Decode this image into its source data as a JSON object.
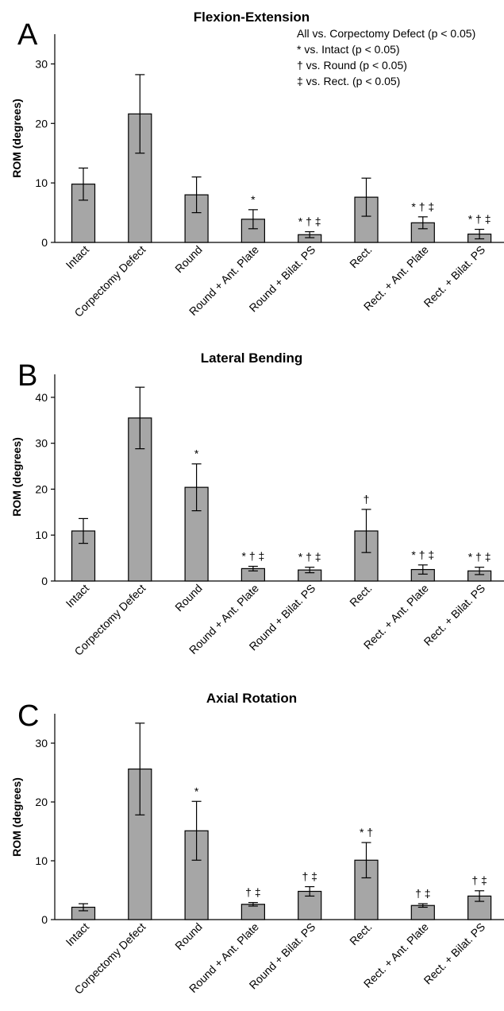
{
  "colors": {
    "bar_fill": "#a6a6a6",
    "stroke": "#000000"
  },
  "legend": [
    "All vs. Corpectomy Defect (p < 0.05)",
    "* vs. Intact (p < 0.05)",
    "† vs. Round (p < 0.05)",
    "‡ vs. Rect. (p < 0.05)"
  ],
  "chart_data": [
    {
      "type": "bar",
      "panel": "A",
      "title": "Flexion-Extension",
      "ylabel": "ROM (degrees)",
      "ylim": [
        0,
        35
      ],
      "yticks": [
        0,
        10,
        20,
        30
      ],
      "categories": [
        "Intact",
        "Corpectomy Defect",
        "Round",
        "Round + Ant. Plate",
        "Round + Bilat. PS",
        "Rect.",
        "Rect. + Ant. Plate",
        "Rect. + Bilat. PS"
      ],
      "values": [
        9.8,
        21.6,
        8.0,
        3.9,
        1.3,
        7.6,
        3.3,
        1.4
      ],
      "errors": [
        2.7,
        6.6,
        3.0,
        1.6,
        0.5,
        3.2,
        1.0,
        0.8
      ],
      "significance": [
        "",
        "",
        "",
        "*",
        "* † ‡",
        "",
        "* † ‡",
        "* † ‡"
      ]
    },
    {
      "type": "bar",
      "panel": "B",
      "title": "Lateral Bending",
      "ylabel": "ROM (degrees)",
      "ylim": [
        0,
        45
      ],
      "yticks": [
        0,
        10,
        20,
        30,
        40
      ],
      "categories": [
        "Intact",
        "Corpectomy Defect",
        "Round",
        "Round + Ant. Plate",
        "Round + Bilat. PS",
        "Rect.",
        "Rect. + Ant. Plate",
        "Rect. + Bilat. PS"
      ],
      "values": [
        10.9,
        35.5,
        20.4,
        2.7,
        2.4,
        10.9,
        2.5,
        2.2
      ],
      "errors": [
        2.7,
        6.7,
        5.1,
        0.5,
        0.6,
        4.7,
        1.0,
        0.8
      ],
      "significance": [
        "",
        "",
        "*",
        "* † ‡",
        "* † ‡",
        "†",
        "* † ‡",
        "* † ‡"
      ]
    },
    {
      "type": "bar",
      "panel": "C",
      "title": "Axial Rotation",
      "ylabel": "ROM (degrees)",
      "ylim": [
        0,
        35
      ],
      "yticks": [
        0,
        10,
        20,
        30
      ],
      "categories": [
        "Intact",
        "Corpectomy Defect",
        "Round",
        "Round + Ant. Plate",
        "Round + Bilat. PS",
        "Rect.",
        "Rect. + Ant. Plate",
        "Rect. + Bilat. PS"
      ],
      "values": [
        2.1,
        25.6,
        15.1,
        2.6,
        4.8,
        10.1,
        2.4,
        4.0
      ],
      "errors": [
        0.6,
        7.8,
        5.0,
        0.3,
        0.8,
        3.0,
        0.3,
        0.9
      ],
      "significance": [
        "",
        "",
        "*",
        "† ‡",
        "† ‡",
        "* †",
        "† ‡",
        "† ‡"
      ]
    }
  ]
}
